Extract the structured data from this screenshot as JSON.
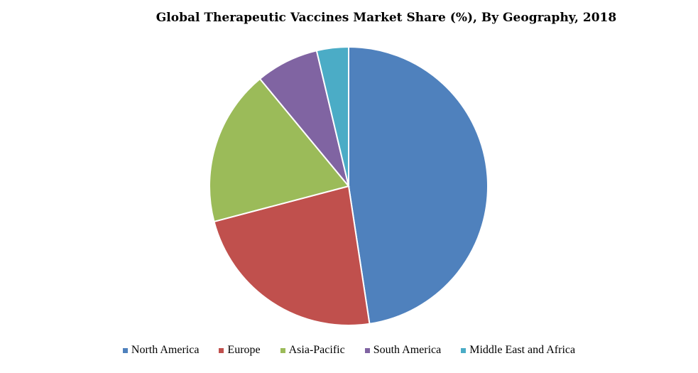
{
  "chart_data": {
    "type": "pie",
    "title": "Global Therapeutic Vaccines Market Share (%), By Geography, 2018",
    "categories": [
      "North America",
      "Europe",
      "Asia-Pacific",
      "South America",
      "Middle East and Africa"
    ],
    "values": [
      47.6,
      23.3,
      18.1,
      7.3,
      3.7
    ],
    "colors": [
      "#4f81bd",
      "#c0504d",
      "#9bbb59",
      "#8064a2",
      "#4bacc6"
    ],
    "legend": "bottom"
  }
}
